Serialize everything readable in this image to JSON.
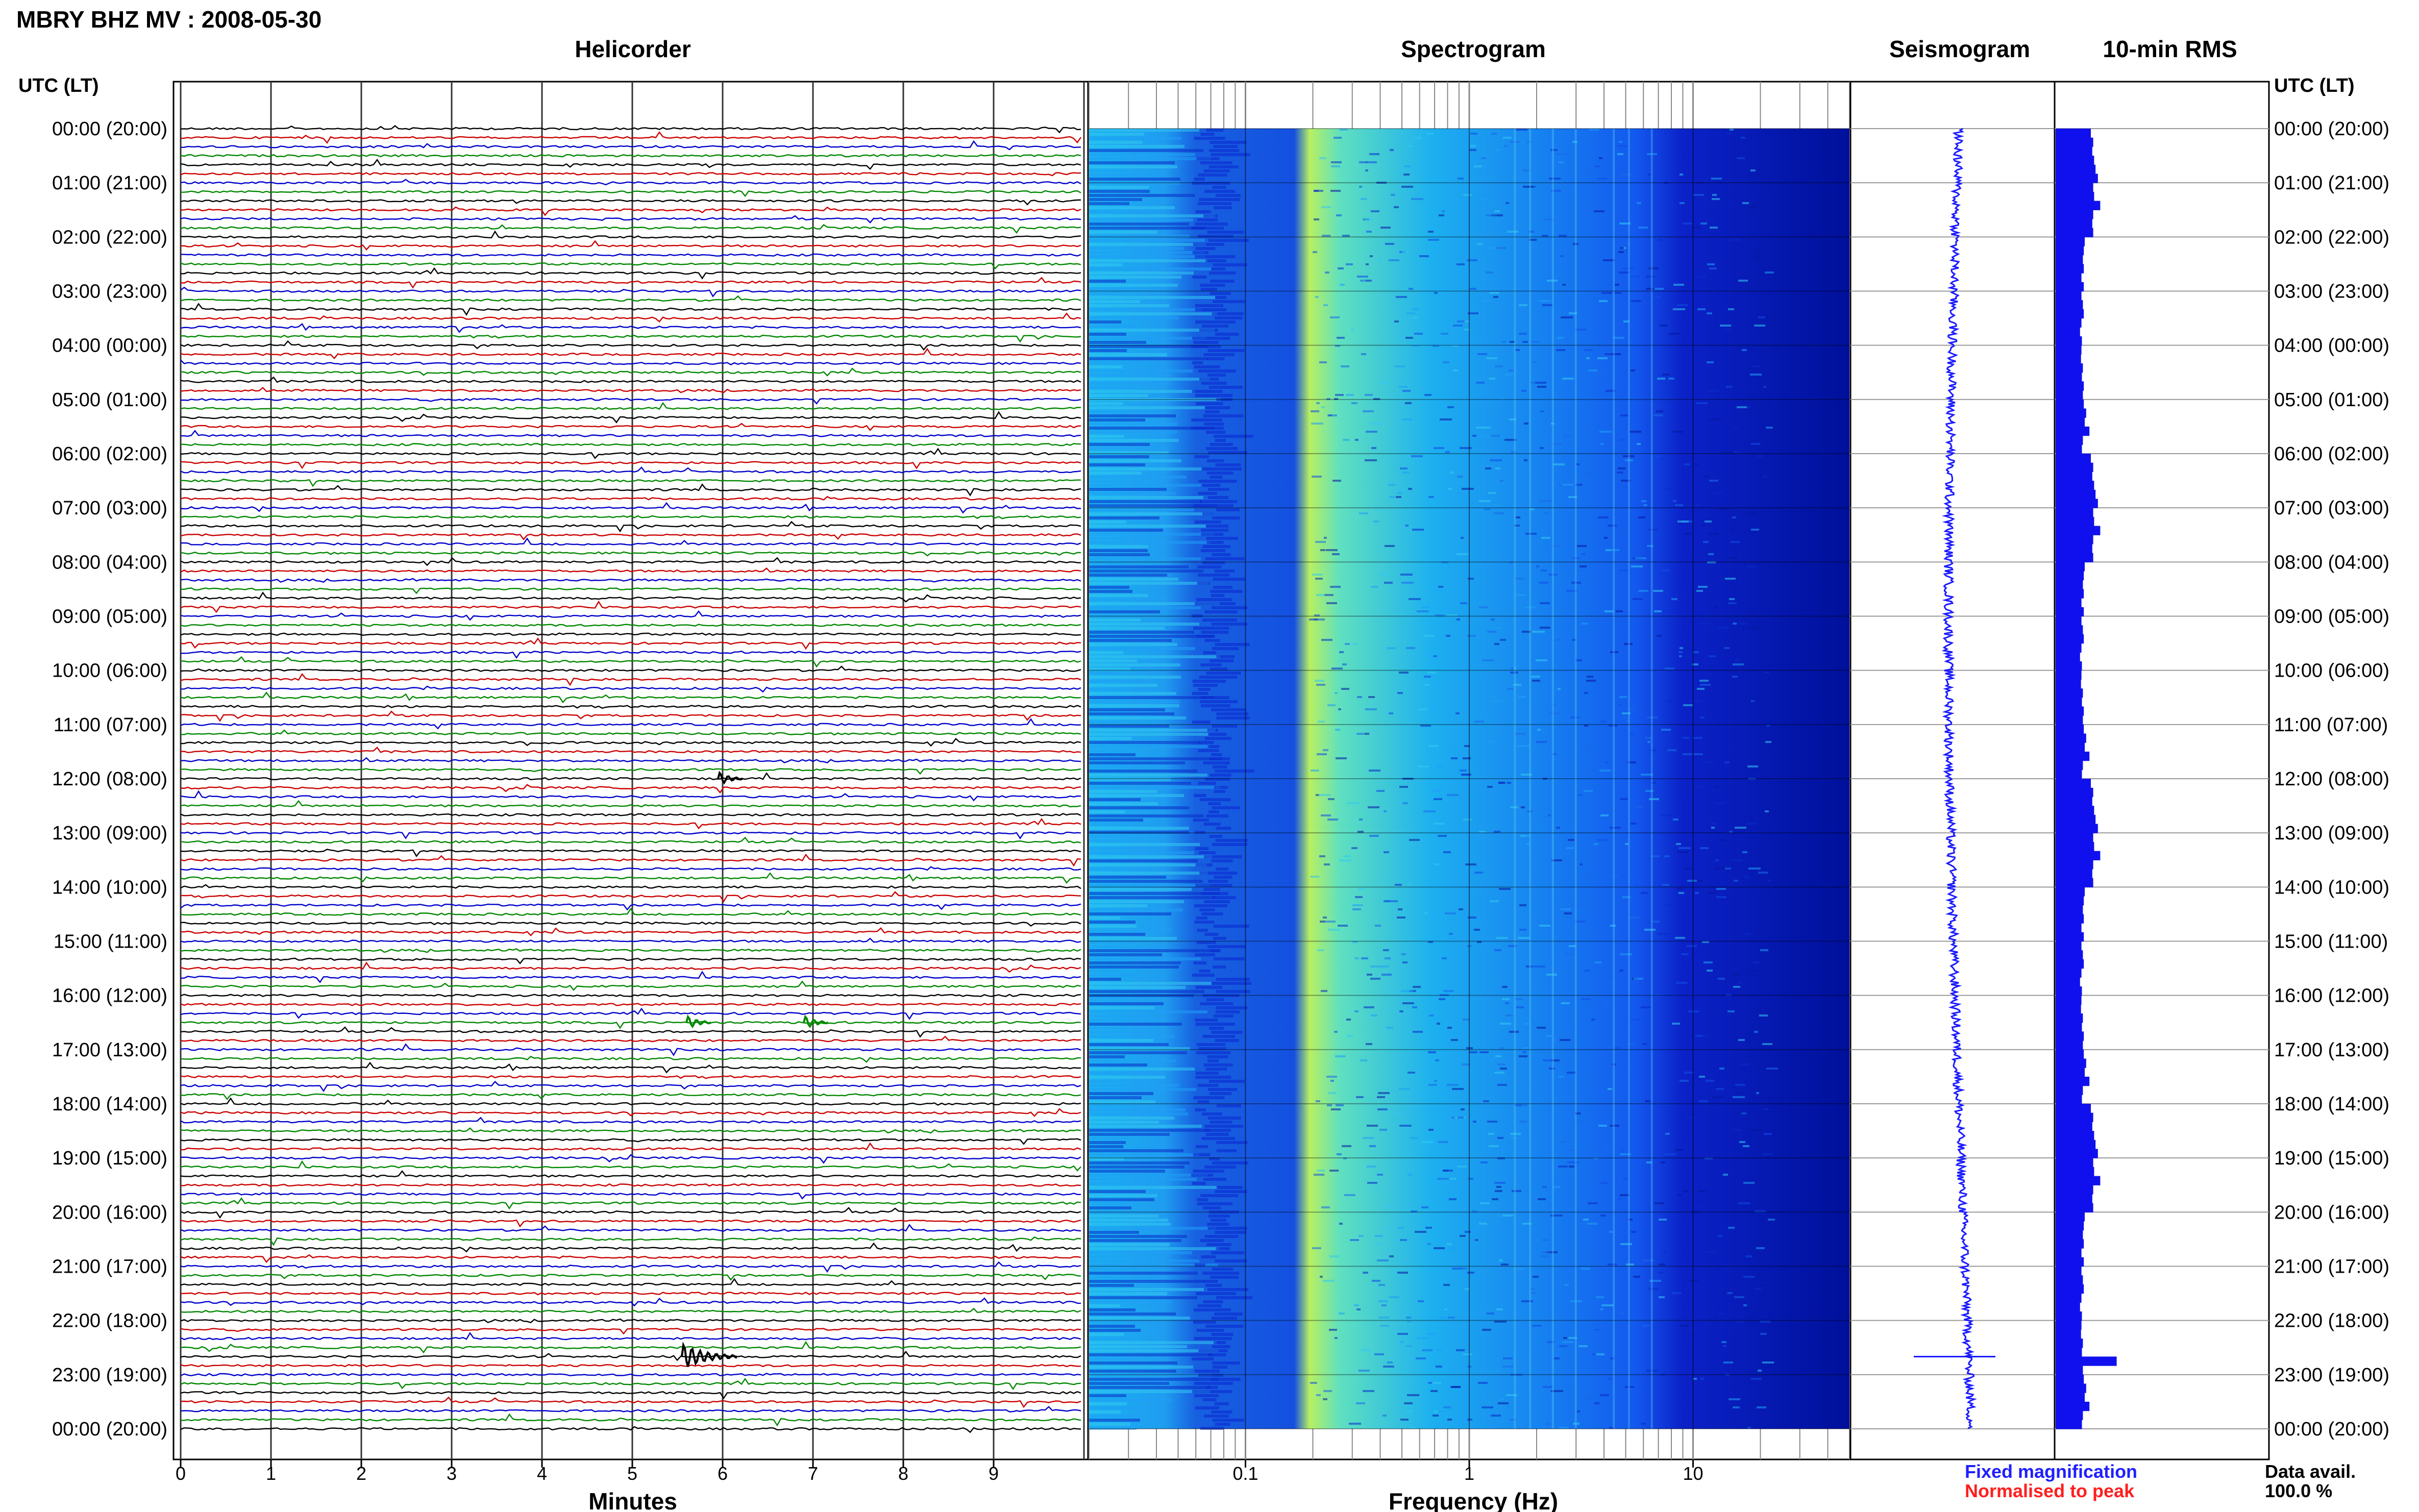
{
  "title": "MBRY BHZ MV : 2008-05-30",
  "panels": {
    "helicorder": "Helicorder",
    "spectrogram": "Spectrogram",
    "seismogram": "Seismogram",
    "rms": "10-min RMS"
  },
  "time_axis_label": "UTC (LT)",
  "time_labels": [
    "00:00 (20:00)",
    "01:00 (21:00)",
    "02:00 (22:00)",
    "03:00 (23:00)",
    "04:00 (00:00)",
    "05:00 (01:00)",
    "06:00 (02:00)",
    "07:00 (03:00)",
    "08:00 (04:00)",
    "09:00 (05:00)",
    "10:00 (06:00)",
    "11:00 (07:00)",
    "12:00 (08:00)",
    "13:00 (09:00)",
    "14:00 (10:00)",
    "15:00 (11:00)",
    "16:00 (12:00)",
    "17:00 (13:00)",
    "18:00 (14:00)",
    "19:00 (15:00)",
    "20:00 (16:00)",
    "21:00 (17:00)",
    "22:00 (18:00)",
    "23:00 (19:00)",
    "00:00 (20:00)"
  ],
  "x_axes": {
    "helicorder": {
      "label": "Minutes",
      "ticks": [
        "0",
        "1",
        "2",
        "3",
        "4",
        "5",
        "6",
        "7",
        "8",
        "9"
      ]
    },
    "spectrogram": {
      "label": "Frequency (Hz)",
      "ticks": [
        "0.1",
        "1",
        "10"
      ],
      "scale": "log"
    }
  },
  "legend": {
    "fixed": "Fixed magnification",
    "normalised": "Normalised to peak",
    "fixed_color": "#1f1fff",
    "normalised_color": "#ff1f1f"
  },
  "data_availability": {
    "label": "Data avail.",
    "value": "100.0 %"
  },
  "colors": {
    "trace_cycle": [
      "#000000",
      "#cc0000",
      "#0000cc",
      "#008800"
    ],
    "spectrogram_low": "#0000aa",
    "spectrogram_high": "#ccff44",
    "seismogram": "#1a1aff",
    "rms_bar": "#1010ee"
  },
  "chart_data": [
    {
      "type": "line",
      "panel": "helicorder",
      "lines_per_hour": 6,
      "hours": 24,
      "xlim": [
        0,
        10
      ],
      "events": [
        {
          "hour": 22,
          "line": 4,
          "minute": 5.55,
          "amplitude": "large"
        },
        {
          "hour": 12,
          "line": 0,
          "minute": 5.95,
          "amplitude": "medium"
        },
        {
          "hour": 16,
          "line": 3,
          "minute": 5.6,
          "amplitude": "medium"
        },
        {
          "hour": 16,
          "line": 3,
          "minute": 6.9,
          "amplitude": "medium"
        }
      ]
    },
    {
      "type": "heatmap",
      "panel": "spectrogram",
      "x_scale": "log",
      "xlim": [
        0.02,
        50
      ],
      "peak_band_hz": [
        0.2,
        0.5
      ],
      "rolloff_hz": 12
    },
    {
      "type": "line",
      "panel": "seismogram",
      "notable_spike_time": "22:40"
    },
    {
      "type": "bar",
      "panel": "rms",
      "orientation": "horizontal",
      "bin_minutes": 10,
      "relative_values": [
        0.75,
        0.8,
        0.78,
        0.82,
        0.85,
        0.9,
        0.8,
        0.82,
        0.95,
        0.8,
        0.78,
        0.8,
        0.62,
        0.6,
        0.58,
        0.6,
        0.55,
        0.6,
        0.55,
        0.58,
        0.6,
        0.55,
        0.52,
        0.56,
        0.55,
        0.54,
        0.58,
        0.56,
        0.6,
        0.58,
        0.6,
        0.65,
        0.62,
        0.72,
        0.58,
        0.56
      ],
      "peak_time": "22:40",
      "peak_value": 1.3
    }
  ]
}
